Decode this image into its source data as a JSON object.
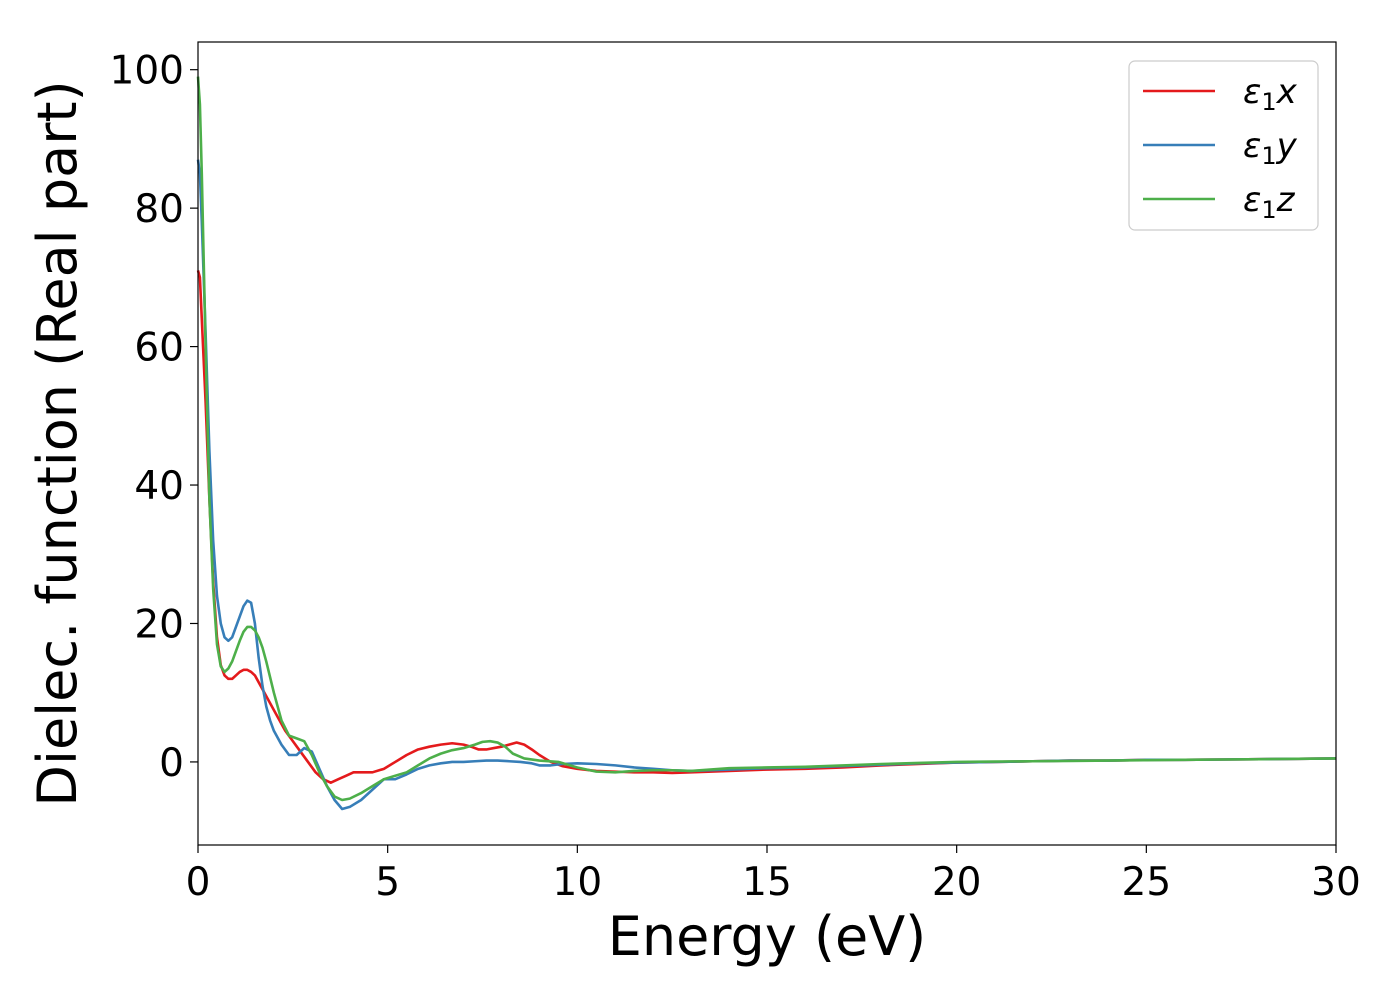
{
  "chart_data": {
    "type": "line",
    "xlabel": "Energy (eV)",
    "ylabel": "Dielec. function (Real part)",
    "xlim": [
      0,
      30
    ],
    "ylim": [
      -12,
      104
    ],
    "xticks": [
      0,
      5,
      10,
      15,
      20,
      25,
      30
    ],
    "yticks": [
      0,
      20,
      40,
      60,
      80,
      100
    ],
    "grid": false,
    "legend_position": "top-right",
    "series": [
      {
        "name": "ε₁x",
        "label_base": "ε",
        "label_sub": "1",
        "label_var": "x",
        "color": "#e41a1c",
        "x": [
          0,
          0.05,
          0.1,
          0.2,
          0.3,
          0.4,
          0.5,
          0.6,
          0.7,
          0.8,
          0.9,
          1.0,
          1.1,
          1.2,
          1.3,
          1.4,
          1.5,
          1.7,
          1.9,
          2.1,
          2.3,
          2.5,
          2.7,
          2.9,
          3.1,
          3.3,
          3.5,
          3.7,
          3.9,
          4.1,
          4.3,
          4.6,
          4.9,
          5.2,
          5.5,
          5.8,
          6.1,
          6.4,
          6.7,
          7.0,
          7.2,
          7.4,
          7.6,
          7.8,
          8.0,
          8.2,
          8.4,
          8.6,
          8.8,
          9.0,
          9.3,
          9.6,
          10.0,
          10.5,
          11.0,
          11.5,
          12.0,
          12.5,
          13.0,
          14.0,
          15.0,
          16.0,
          17.0,
          18.0,
          19.0,
          20.0,
          21.0,
          22.0,
          23.0,
          24.0,
          25.0,
          26.0,
          27.0,
          28.0,
          29.0,
          30.0
        ],
        "y": [
          71,
          70,
          64,
          52,
          38,
          26,
          18,
          14,
          12.5,
          12,
          12,
          12.5,
          13,
          13.3,
          13.3,
          13,
          12.5,
          10.5,
          8.5,
          6.5,
          4.5,
          3,
          1.5,
          0,
          -1.5,
          -2.5,
          -3,
          -2.5,
          -2,
          -1.5,
          -1.5,
          -1.5,
          -1,
          0,
          1,
          1.8,
          2.2,
          2.5,
          2.7,
          2.5,
          2.2,
          1.8,
          1.8,
          2,
          2.2,
          2.5,
          2.8,
          2.5,
          1.8,
          1,
          0,
          -0.6,
          -1,
          -1.3,
          -1.4,
          -1.5,
          -1.5,
          -1.6,
          -1.5,
          -1.3,
          -1.1,
          -1.0,
          -0.8,
          -0.5,
          -0.3,
          -0.1,
          0,
          0.1,
          0.2,
          0.2,
          0.3,
          0.3,
          0.35,
          0.4,
          0.45,
          0.5
        ]
      },
      {
        "name": "ε₁y",
        "label_base": "ε",
        "label_sub": "1",
        "label_var": "y",
        "color": "#377eb8",
        "x": [
          0,
          0.05,
          0.1,
          0.2,
          0.3,
          0.4,
          0.5,
          0.6,
          0.7,
          0.8,
          0.9,
          1.0,
          1.1,
          1.2,
          1.3,
          1.4,
          1.5,
          1.6,
          1.7,
          1.8,
          1.9,
          2.0,
          2.2,
          2.4,
          2.6,
          2.8,
          3.0,
          3.2,
          3.4,
          3.6,
          3.8,
          4.0,
          4.3,
          4.6,
          4.9,
          5.2,
          5.5,
          5.8,
          6.1,
          6.4,
          6.7,
          7.0,
          7.3,
          7.6,
          7.9,
          8.2,
          8.5,
          8.8,
          9.0,
          9.3,
          9.6,
          10.0,
          10.5,
          11.0,
          11.5,
          12.0,
          12.5,
          13.0,
          13.5,
          14.0,
          15.0,
          16.0,
          17.0,
          18.0,
          19.0,
          20.0,
          21.0,
          22.0,
          23.0,
          24.0,
          25.0,
          26.0,
          27.0,
          28.0,
          29.0,
          30.0
        ],
        "y": [
          87,
          85,
          78,
          62,
          45,
          32,
          24,
          20,
          18,
          17.5,
          18,
          19.5,
          21,
          22.5,
          23.3,
          23,
          20,
          15,
          11,
          8,
          6,
          4.5,
          2.5,
          1,
          1,
          2,
          1.5,
          -1,
          -3.5,
          -5.5,
          -6.8,
          -6.5,
          -5.5,
          -4,
          -2.5,
          -2.5,
          -1.8,
          -1,
          -0.5,
          -0.2,
          0,
          0,
          0.1,
          0.2,
          0.2,
          0.1,
          0,
          -0.2,
          -0.5,
          -0.5,
          -0.3,
          -0.2,
          -0.3,
          -0.5,
          -0.8,
          -1.0,
          -1.2,
          -1.3,
          -1.2,
          -1.1,
          -0.9,
          -0.8,
          -0.6,
          -0.4,
          -0.2,
          -0.1,
          0,
          0.1,
          0.2,
          0.2,
          0.3,
          0.3,
          0.35,
          0.4,
          0.45,
          0.5
        ]
      },
      {
        "name": "ε₁z",
        "label_base": "ε",
        "label_sub": "1",
        "label_var": "z",
        "color": "#4daf4a",
        "x": [
          0,
          0.05,
          0.1,
          0.2,
          0.3,
          0.4,
          0.5,
          0.6,
          0.7,
          0.8,
          0.9,
          1.0,
          1.1,
          1.2,
          1.3,
          1.4,
          1.5,
          1.6,
          1.7,
          1.8,
          2.0,
          2.2,
          2.4,
          2.6,
          2.8,
          3.0,
          3.2,
          3.4,
          3.6,
          3.8,
          4.0,
          4.3,
          4.6,
          4.9,
          5.2,
          5.5,
          5.8,
          6.1,
          6.4,
          6.7,
          7.0,
          7.3,
          7.5,
          7.7,
          7.9,
          8.1,
          8.3,
          8.6,
          9.0,
          9.5,
          10.0,
          10.5,
          11.0,
          11.5,
          12.0,
          12.5,
          13.0,
          13.5,
          14.0,
          15.0,
          16.0,
          17.0,
          18.0,
          19.0,
          20.0,
          21.0,
          22.0,
          23.0,
          24.0,
          25.0,
          26.0,
          27.0,
          28.0,
          29.0,
          30.0
        ],
        "y": [
          99,
          95,
          85,
          60,
          38,
          25,
          17,
          13.8,
          13,
          13.5,
          14.5,
          16,
          17.5,
          18.8,
          19.5,
          19.5,
          19,
          18,
          16.5,
          14.5,
          10,
          6,
          3.8,
          3.4,
          3,
          1,
          -1.5,
          -3.5,
          -5,
          -5.5,
          -5.3,
          -4.5,
          -3.5,
          -2.5,
          -2,
          -1.5,
          -0.5,
          0.5,
          1.2,
          1.7,
          2,
          2.5,
          2.9,
          3,
          2.8,
          2.2,
          1.2,
          0.5,
          0.2,
          0,
          -0.8,
          -1.4,
          -1.5,
          -1.3,
          -1.2,
          -1.2,
          -1.3,
          -1.1,
          -0.9,
          -0.8,
          -0.7,
          -0.5,
          -0.3,
          -0.15,
          0,
          0.05,
          0.1,
          0.15,
          0.2,
          0.25,
          0.3,
          0.35,
          0.4,
          0.45,
          0.5
        ]
      }
    ]
  }
}
